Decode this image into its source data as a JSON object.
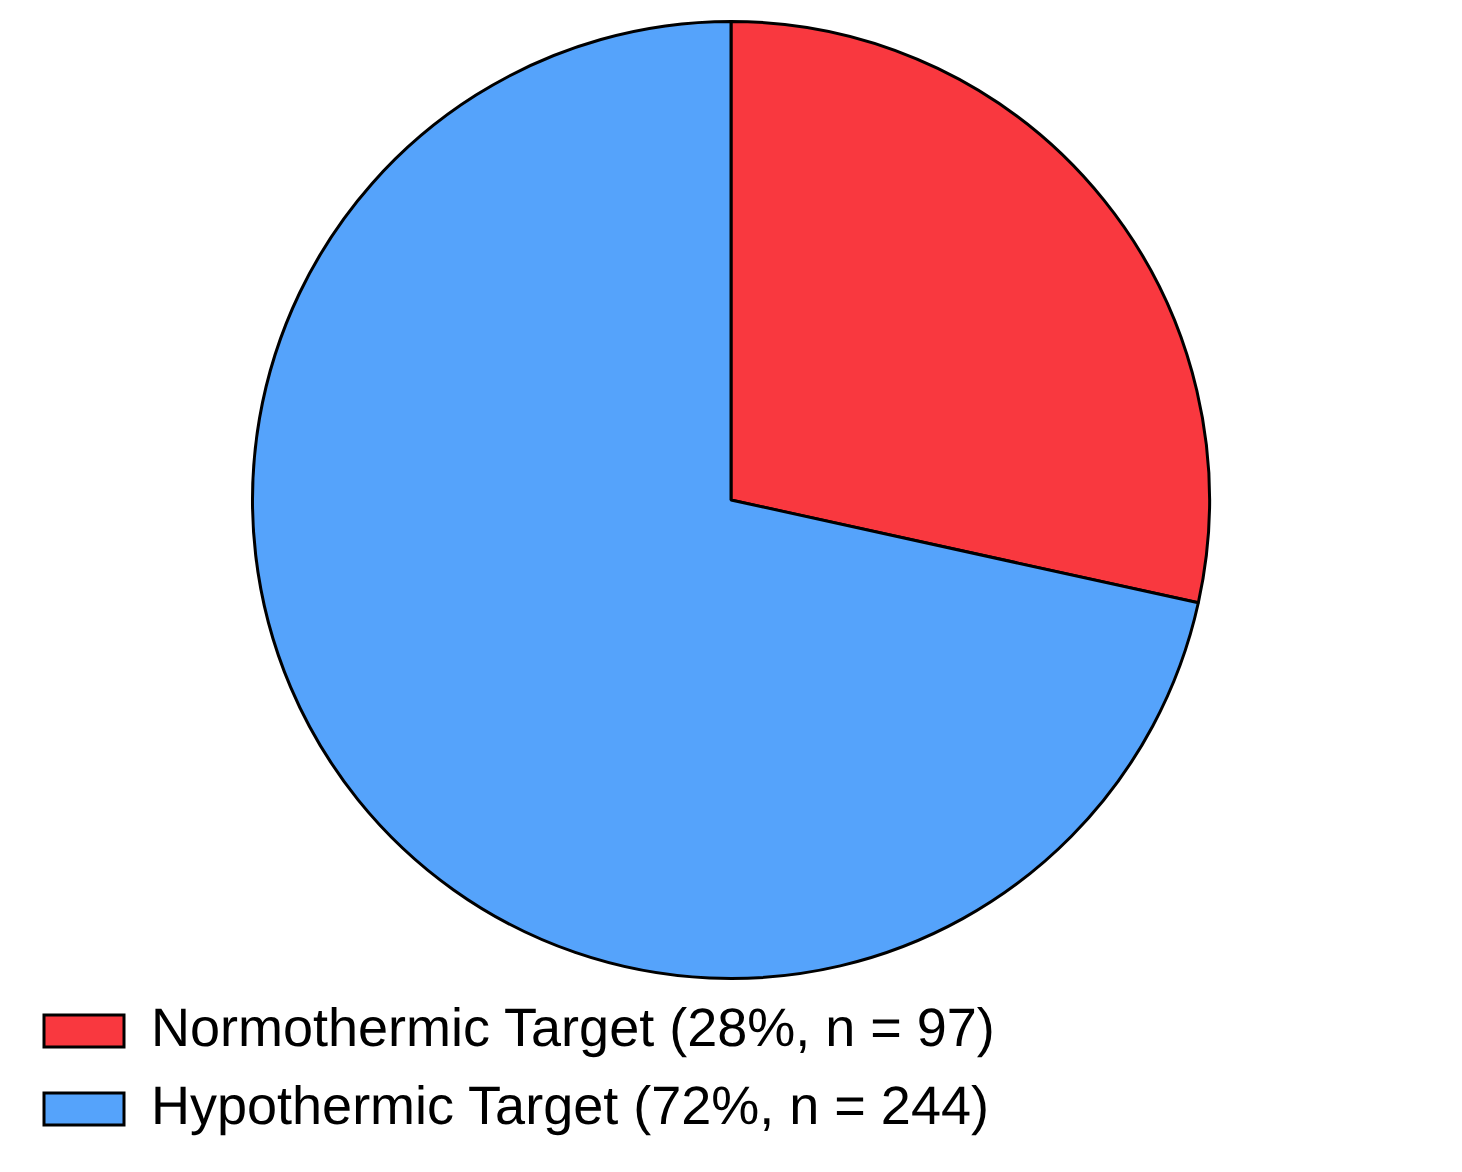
{
  "chart_data": {
    "type": "pie",
    "categories": [
      "Normothermic Target (28%, n = 97)",
      "Hypothermic Target (72%, n = 244)"
    ],
    "values": [
      97,
      244
    ],
    "colors": [
      "#f9383f",
      "#55a3fb"
    ],
    "legend": "bottom"
  }
}
